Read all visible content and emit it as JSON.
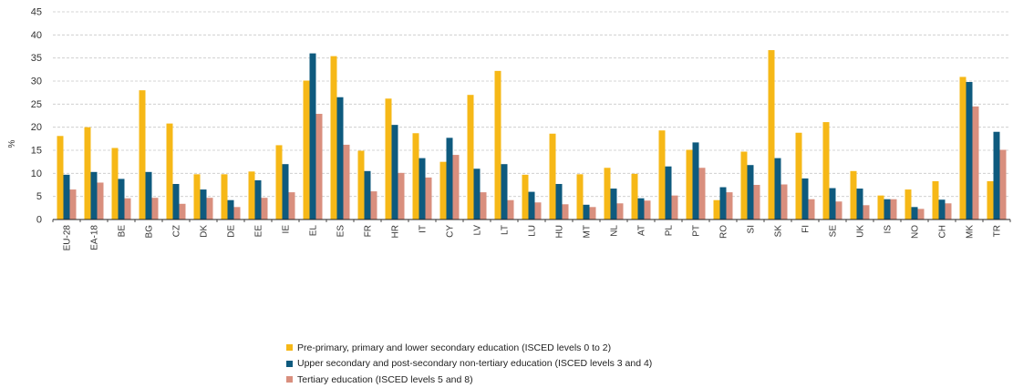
{
  "chart_data": {
    "type": "bar",
    "ylabel": "%",
    "ylim": [
      0,
      45
    ],
    "yticks": [
      0,
      5,
      10,
      15,
      20,
      25,
      30,
      35,
      40,
      45
    ],
    "grid": true,
    "legend_position": "bottom",
    "categories": [
      "EU-28",
      "EA-18",
      "BE",
      "BG",
      "CZ",
      "DK",
      "DE",
      "EE",
      "IE",
      "EL",
      "ES",
      "FR",
      "HR",
      "IT",
      "CY",
      "LV",
      "LT",
      "LU",
      "HU",
      "MT",
      "NL",
      "AT",
      "PL",
      "PT",
      "RO",
      "SI",
      "SK",
      "FI",
      "SE",
      "UK",
      "IS",
      "NO",
      "CH",
      "MK",
      "TR"
    ],
    "series": [
      {
        "name": "Pre-primary, primary and lower secondary education (ISCED levels 0 to 2)",
        "color": "#F6B817",
        "values": [
          18.1,
          20.0,
          15.5,
          28.0,
          20.8,
          9.8,
          9.8,
          10.4,
          16.1,
          30.1,
          35.4,
          14.9,
          26.2,
          18.7,
          12.5,
          27.0,
          32.2,
          9.7,
          18.6,
          9.8,
          11.2,
          9.9,
          19.3,
          15.1,
          4.2,
          14.7,
          36.7,
          18.8,
          21.1,
          10.5,
          5.2,
          6.5,
          8.3,
          30.9,
          8.3
        ]
      },
      {
        "name": "Upper secondary and post-secondary non-tertiary education (ISCED levels 3 and 4)",
        "color": "#0E5A7E",
        "values": [
          9.7,
          10.3,
          8.8,
          10.3,
          7.7,
          6.5,
          4.2,
          8.5,
          12.0,
          36.0,
          26.5,
          10.5,
          20.5,
          13.3,
          17.7,
          11.0,
          12.0,
          6.0,
          7.7,
          3.2,
          6.7,
          4.6,
          11.5,
          16.7,
          7.0,
          11.8,
          13.3,
          8.9,
          6.8,
          6.7,
          4.4,
          2.7,
          4.3,
          29.8,
          19.0
        ]
      },
      {
        "name": "Tertiary education (ISCED levels 5 and 8)",
        "color": "#D98F7E",
        "values": [
          6.5,
          8.0,
          4.6,
          4.7,
          3.4,
          4.7,
          2.7,
          4.7,
          5.9,
          22.9,
          16.2,
          6.1,
          10.1,
          9.1,
          14.0,
          5.9,
          4.2,
          3.7,
          3.3,
          2.7,
          3.5,
          4.1,
          5.2,
          11.2,
          5.9,
          7.5,
          7.6,
          4.4,
          3.9,
          3.1,
          4.4,
          2.3,
          3.5,
          24.5,
          15.1
        ]
      }
    ]
  }
}
